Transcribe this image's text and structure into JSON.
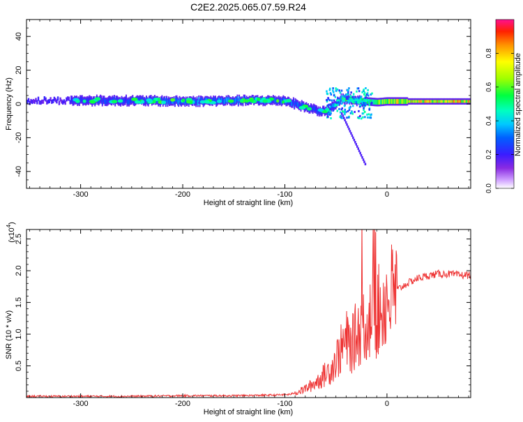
{
  "title": "C2E2.2025.065.07.59.R24",
  "chart_data": [
    {
      "type": "heatmap",
      "xlabel": "Height of straight line (km)",
      "ylabel": "Frequency (Hz)",
      "xlim": [
        -353,
        82
      ],
      "ylim": [
        -50,
        50
      ],
      "xticks": [
        -300,
        -200,
        -100,
        0
      ],
      "yticks": [
        -40,
        -20,
        0,
        20,
        40
      ],
      "colorbar": {
        "label": "Normalized spectral amplitude",
        "range": [
          0,
          1
        ],
        "ticks": [
          0.0,
          0.2,
          0.4,
          0.6,
          0.8
        ]
      },
      "tone_track": [
        {
          "x": -310,
          "y": 2,
          "amp": 0.3
        },
        {
          "x": -250,
          "y": 2,
          "amp": 0.32
        },
        {
          "x": -200,
          "y": 1.5,
          "amp": 0.4
        },
        {
          "x": -150,
          "y": 2,
          "amp": 0.38
        },
        {
          "x": -100,
          "y": 2,
          "amp": 0.36
        },
        {
          "x": -80,
          "y": -2,
          "amp": 0.35
        },
        {
          "x": -60,
          "y": -5,
          "amp": 0.3
        },
        {
          "x": -45,
          "y": 3,
          "amp": 0.4
        },
        {
          "x": -30,
          "y": 2,
          "amp": 0.45
        },
        {
          "x": -10,
          "y": 1,
          "amp": 0.7
        },
        {
          "x": 0,
          "y": 1.5,
          "amp": 0.85
        },
        {
          "x": 20,
          "y": 1.5,
          "amp": 0.9
        },
        {
          "x": 80,
          "y": 1.5,
          "amp": 0.95
        }
      ]
    },
    {
      "type": "line",
      "xlabel": "Height of straight line (km)",
      "ylabel": "SNR (10 * v/v)",
      "y_multiplier": "(x10",
      "y_multiplier_exp": "4",
      "xlim": [
        -353,
        82
      ],
      "ylim": [
        0,
        2.65
      ],
      "xticks": [
        -300,
        -200,
        -100,
        0
      ],
      "yticks": [
        0.5,
        1.0,
        1.5,
        2.0,
        2.5
      ],
      "series": [
        {
          "color": "#ee3333",
          "points": [
            [
              -353,
              0.02
            ],
            [
              -300,
              0.02
            ],
            [
              -250,
              0.02
            ],
            [
              -200,
              0.03
            ],
            [
              -150,
              0.03
            ],
            [
              -110,
              0.04
            ],
            [
              -95,
              0.05
            ],
            [
              -85,
              0.1
            ],
            [
              -75,
              0.18
            ],
            [
              -65,
              0.3
            ],
            [
              -55,
              0.45
            ],
            [
              -50,
              0.6
            ],
            [
              -45,
              0.75
            ],
            [
              -40,
              0.9
            ],
            [
              -35,
              0.8
            ],
            [
              -30,
              1.0
            ],
            [
              -25,
              1.1
            ],
            [
              -20,
              1.2
            ],
            [
              -15,
              1.25
            ],
            [
              -10,
              1.3
            ],
            [
              -5,
              1.45
            ],
            [
              0,
              1.55
            ],
            [
              5,
              1.62
            ],
            [
              10,
              1.7
            ],
            [
              20,
              1.8
            ],
            [
              30,
              1.88
            ],
            [
              40,
              1.92
            ],
            [
              50,
              1.95
            ],
            [
              60,
              1.95
            ],
            [
              70,
              1.93
            ],
            [
              82,
              1.93
            ]
          ]
        }
      ]
    }
  ]
}
